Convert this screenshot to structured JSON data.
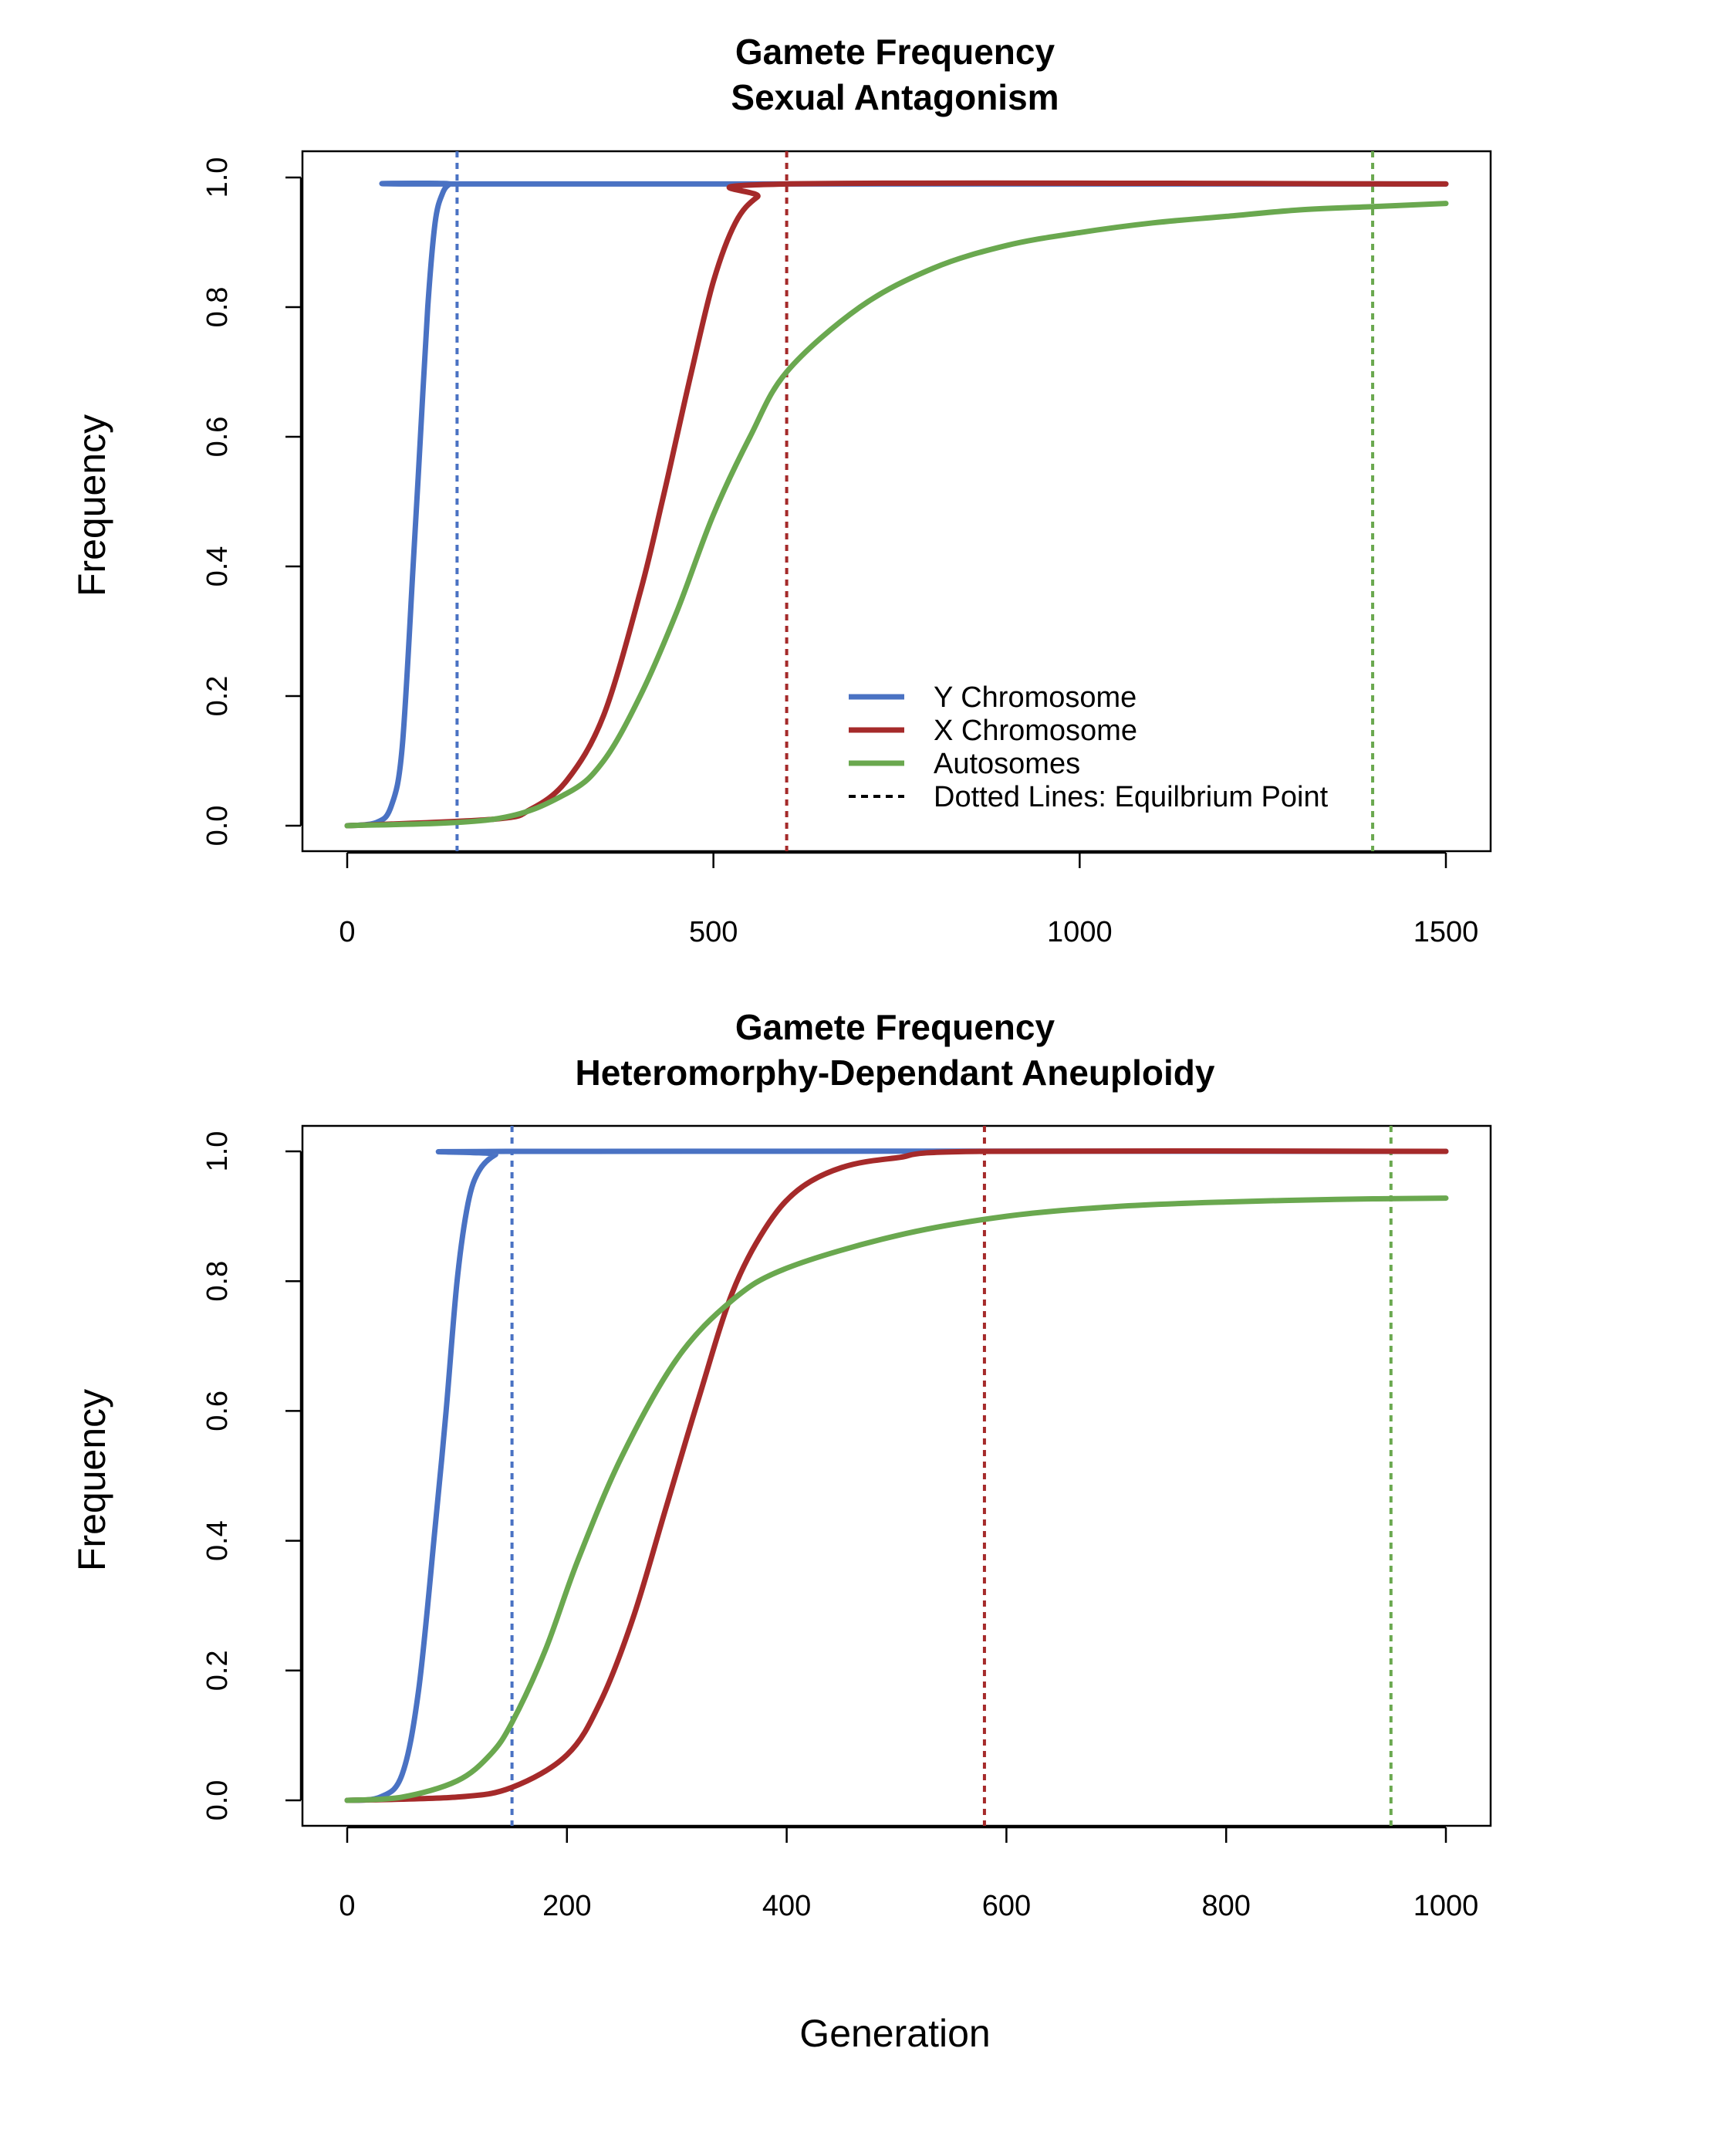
{
  "chart_data": [
    {
      "type": "line",
      "title": "Gamete Frequency",
      "subtitle": "Sexual Antagonism",
      "xlabel": "",
      "ylabel": "Frequency",
      "xlim": [
        0,
        1500
      ],
      "ylim": [
        0,
        1
      ],
      "xticks": [
        "0",
        "500",
        "1000",
        "1500"
      ],
      "yticks": [
        "0.0",
        "0.2",
        "0.4",
        "0.6",
        "0.8",
        "1.0"
      ],
      "series": [
        {
          "name": "Y Chromosome",
          "color": "#4A72C3",
          "x": [
            0,
            40,
            60,
            75,
            90,
            100,
            110,
            120,
            130,
            140,
            150,
            1500
          ],
          "y": [
            0.0,
            0.005,
            0.03,
            0.12,
            0.4,
            0.6,
            0.8,
            0.93,
            0.975,
            0.99,
            0.99,
            0.99
          ]
        },
        {
          "name": "X Chromosome",
          "color": "#A52A2A",
          "x": [
            0,
            200,
            250,
            300,
            350,
            400,
            430,
            450,
            470,
            500,
            530,
            560,
            600,
            1500
          ],
          "y": [
            0.0,
            0.01,
            0.025,
            0.07,
            0.17,
            0.36,
            0.5,
            0.6,
            0.7,
            0.84,
            0.93,
            0.97,
            0.99,
            0.99
          ]
        },
        {
          "name": "Autosomes",
          "color": "#6AA84F",
          "x": [
            0,
            200,
            300,
            350,
            400,
            450,
            500,
            550,
            600,
            700,
            800,
            900,
            1000,
            1100,
            1200,
            1300,
            1400,
            1500
          ],
          "y": [
            0.0,
            0.01,
            0.05,
            0.1,
            0.2,
            0.33,
            0.48,
            0.6,
            0.7,
            0.8,
            0.86,
            0.895,
            0.915,
            0.93,
            0.94,
            0.95,
            0.955,
            0.96
          ]
        }
      ],
      "equilibrium_lines": [
        {
          "series": "Y Chromosome",
          "x": 150,
          "color": "#4A72C3"
        },
        {
          "series": "X Chromosome",
          "x": 600,
          "color": "#A52A2A"
        },
        {
          "series": "Autosomes",
          "x": 1400,
          "color": "#6AA84F"
        }
      ],
      "legend": {
        "placement": "bottom-right",
        "entries": [
          {
            "label": "Y Chromosome",
            "color": "#4A72C3",
            "style": "solid"
          },
          {
            "label": "X Chromosome",
            "color": "#A52A2A",
            "style": "solid"
          },
          {
            "label": "Autosomes",
            "color": "#6AA84F",
            "style": "solid"
          },
          {
            "label": "Dotted Lines: Equilbrium Point",
            "color": "#000000",
            "style": "dotted"
          }
        ]
      },
      "grid": false
    },
    {
      "type": "line",
      "title": "Gamete Frequency",
      "subtitle": "Heteromorphy-Dependant Aneuploidy",
      "xlabel": "Generation",
      "ylabel": "Frequency",
      "xlim": [
        0,
        1000
      ],
      "ylim": [
        0,
        1
      ],
      "xticks": [
        "0",
        "200",
        "400",
        "600",
        "800",
        "1000"
      ],
      "yticks": [
        "0.0",
        "0.2",
        "0.4",
        "0.6",
        "0.8",
        "1.0"
      ],
      "series": [
        {
          "name": "Y Chromosome",
          "color": "#4A72C3",
          "x": [
            0,
            30,
            50,
            65,
            80,
            90,
            100,
            110,
            120,
            135,
            150,
            1000
          ],
          "y": [
            0.0,
            0.005,
            0.04,
            0.17,
            0.42,
            0.6,
            0.8,
            0.92,
            0.97,
            0.995,
            1.0,
            1.0
          ]
        },
        {
          "name": "X Chromosome",
          "color": "#A52A2A",
          "x": [
            0,
            100,
            150,
            200,
            230,
            260,
            290,
            320,
            350,
            380,
            410,
            450,
            500,
            580,
            1000
          ],
          "y": [
            0.0,
            0.005,
            0.02,
            0.07,
            0.15,
            0.28,
            0.45,
            0.62,
            0.78,
            0.88,
            0.94,
            0.975,
            0.99,
            1.0,
            1.0
          ]
        },
        {
          "name": "Autosomes",
          "color": "#6AA84F",
          "x": [
            0,
            50,
            100,
            130,
            150,
            180,
            210,
            250,
            300,
            350,
            400,
            500,
            600,
            700,
            800,
            900,
            1000
          ],
          "y": [
            0.0,
            0.005,
            0.03,
            0.07,
            0.12,
            0.23,
            0.37,
            0.53,
            0.68,
            0.77,
            0.82,
            0.87,
            0.9,
            0.915,
            0.922,
            0.926,
            0.928
          ]
        }
      ],
      "equilibrium_lines": [
        {
          "series": "Y Chromosome",
          "x": 150,
          "color": "#4A72C3"
        },
        {
          "series": "X Chromosome",
          "x": 580,
          "color": "#A52A2A"
        },
        {
          "series": "Autosomes",
          "x": 950,
          "color": "#6AA84F"
        }
      ],
      "grid": false
    }
  ]
}
